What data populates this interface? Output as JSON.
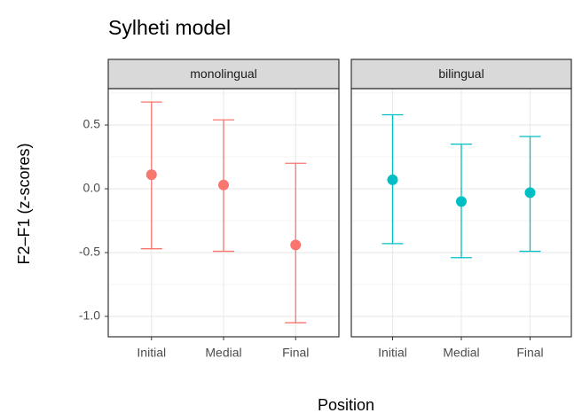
{
  "chart_data": {
    "type": "errorbar",
    "title": "Sylheti model",
    "xlabel": "Position",
    "ylabel": "F2–F1 (z-scores)",
    "ylim": [
      -1.16,
      0.785
    ],
    "yticks": [
      0.5,
      0.0,
      -0.5,
      -1.0
    ],
    "grid": true,
    "facets": [
      {
        "name": "monolingual",
        "color": "#f8766d",
        "categories": [
          "Initial",
          "Medial",
          "Final"
        ],
        "values": [
          0.11,
          0.03,
          -0.44
        ],
        "lower": [
          -0.47,
          -0.49,
          -1.05
        ],
        "upper": [
          0.68,
          0.54,
          0.2
        ]
      },
      {
        "name": "bilingual",
        "color": "#00bfc4",
        "categories": [
          "Initial",
          "Medial",
          "Final"
        ],
        "values": [
          0.07,
          -0.1,
          -0.03
        ],
        "lower": [
          -0.43,
          -0.54,
          -0.49
        ],
        "upper": [
          0.58,
          0.35,
          0.41
        ]
      }
    ]
  }
}
